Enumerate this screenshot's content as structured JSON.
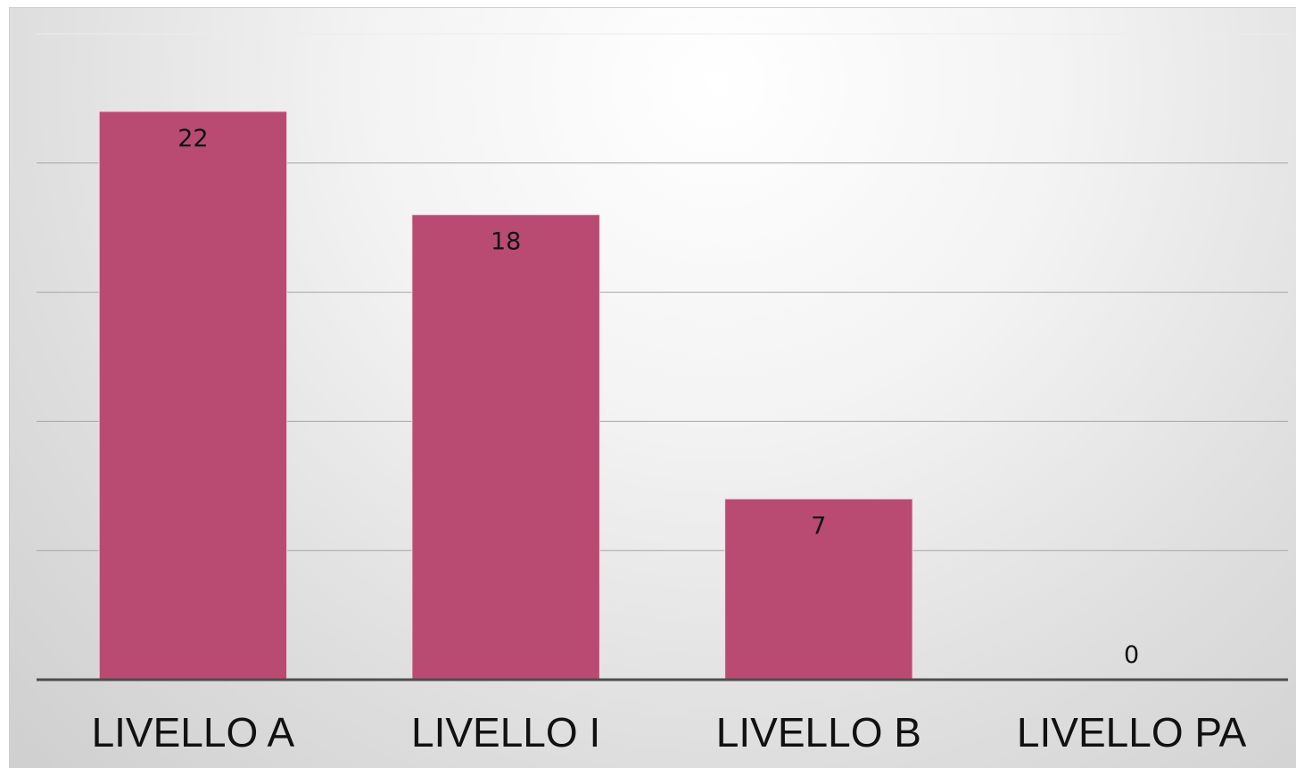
{
  "chart_data": {
    "type": "bar",
    "categories": [
      "LIVELLO A",
      "LIVELLO I",
      "LIVELLO B",
      "LIVELLO PA"
    ],
    "values": [
      22,
      18,
      7,
      0
    ],
    "data_labels": [
      "22",
      "18",
      "7",
      "0"
    ],
    "title": "",
    "xlabel": "",
    "ylabel": "",
    "ylim": [
      0,
      25
    ],
    "gridlines": [
      0,
      5,
      10,
      15,
      20,
      25
    ],
    "grid": true,
    "legend": "none",
    "bar_color": "#b94b72",
    "axis_color": "#4d4d4d"
  }
}
